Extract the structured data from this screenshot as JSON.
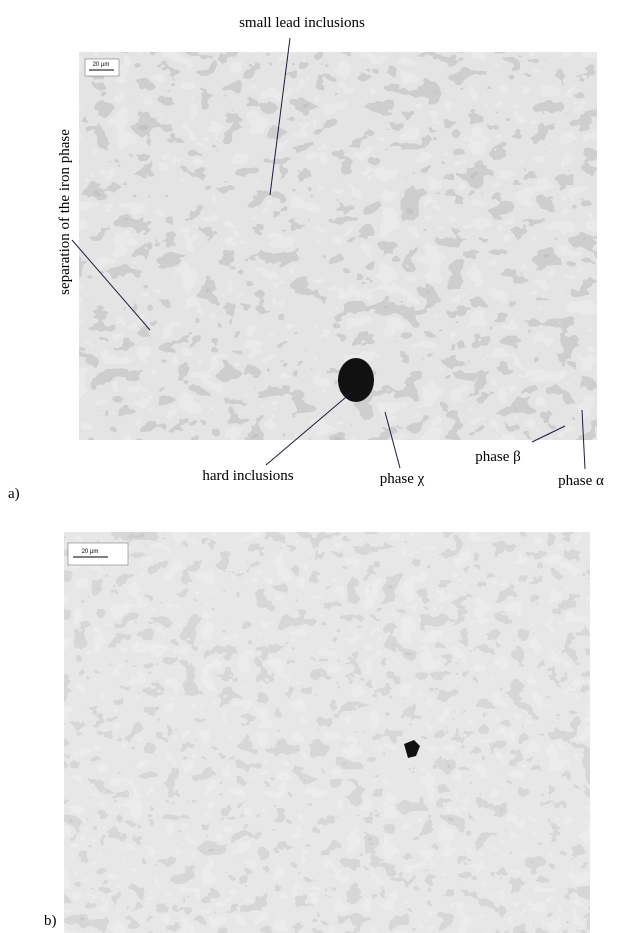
{
  "panels": [
    {
      "label": "a)",
      "scale_bar": "20 µm",
      "annotations": {
        "lead": "small lead inclusions",
        "iron": "separation of the iron phase",
        "hard": "hard inclusions",
        "chi": "phase χ",
        "beta": "phase β",
        "alpha": "phase α"
      }
    },
    {
      "label": "b)",
      "scale_bar": "20 µm"
    }
  ]
}
